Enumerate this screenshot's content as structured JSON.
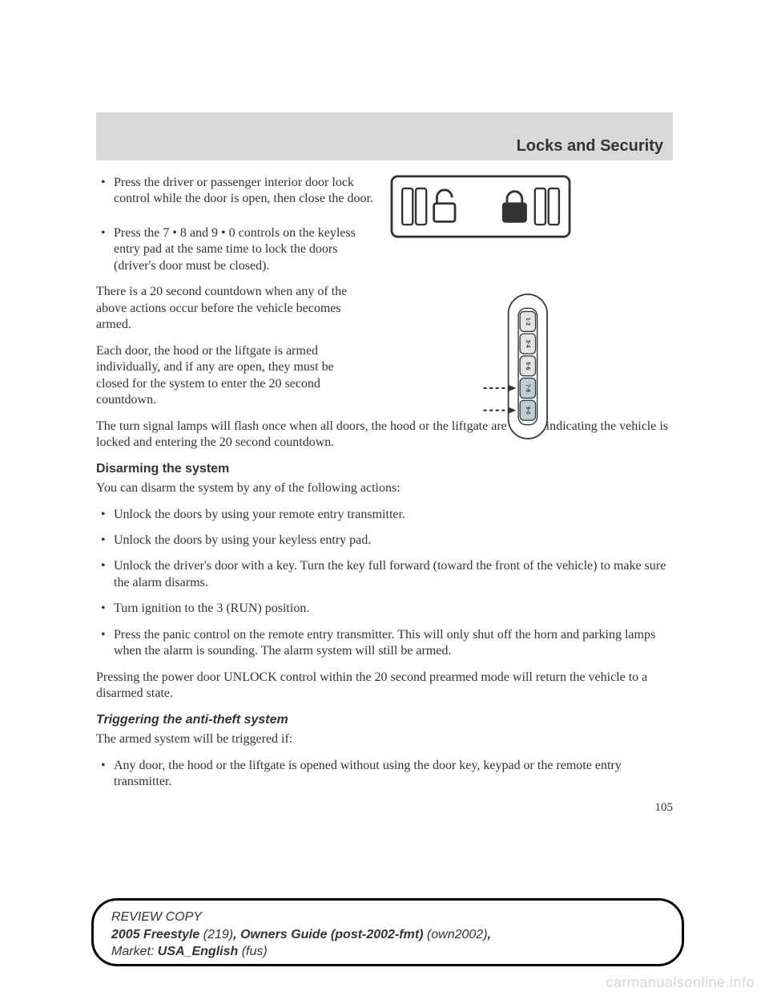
{
  "header": {
    "title": "Locks and Security"
  },
  "bullets_top": [
    "Press the driver or passenger interior door lock control while the door is open, then close the door.",
    "Press the 7 • 8 and 9 • 0 controls on the keyless entry pad at the same time to lock the doors (driver's door must be closed)."
  ],
  "paras_top": [
    "There is a 20 second countdown when any of the above actions occur before the vehicle becomes armed.",
    "Each door, the hood or the liftgate is armed individually, and if any are open, they must be closed for the system to enter the 20 second countdown.",
    "The turn signal lamps will flash once when all doors, the hood or the liftgate are closed indicating the vehicle is locked and entering the 20 second countdown."
  ],
  "sections": {
    "disarm": {
      "heading": "Disarming the system",
      "intro": "You can disarm the system by any of the following actions:",
      "bullets": [
        "Unlock the doors by using your remote entry transmitter.",
        "Unlock the doors by using your keyless entry pad.",
        "Unlock the driver's door with a key. Turn the key full forward (toward the front of the vehicle) to make sure the alarm disarms.",
        "Turn ignition to the 3 (RUN) position.",
        "Press the panic control on the remote entry transmitter. This will only shut off the horn and parking lamps when the alarm is sounding. The alarm system will still be armed."
      ],
      "outro": "Pressing the power door UNLOCK control within the 20 second prearmed mode will return the vehicle to a disarmed state."
    },
    "trigger": {
      "heading": "Triggering the anti-theft system",
      "intro": "The armed system will be triggered if:",
      "bullets": [
        "Any door, the hood or the liftgate is opened without using the door key, keypad or the remote entry transmitter."
      ]
    }
  },
  "page_number": "105",
  "lock_panel": {
    "bg": "#ffffff",
    "stroke": "#333333",
    "stroke_width": 2.5
  },
  "keypad": {
    "body_fill": "#ffffff",
    "stroke": "#333333",
    "button_fill": "#e3e3e3",
    "highlight_fill": "#b9cfd6",
    "labels": [
      "1·2",
      "3·4",
      "5·6",
      "7·8",
      "9·0"
    ],
    "arrow_targets": [
      3,
      4
    ],
    "dash": "6,5"
  },
  "footer": {
    "line1": "REVIEW COPY",
    "model_bold": "2005 Freestyle ",
    "model_code": "(219)",
    "guide_bold": ", Owners Guide (post-2002-fmt) ",
    "guide_code": "(own2002)",
    "comma": ",",
    "market_label": "Market: ",
    "market_bold": "USA_English ",
    "market_code": "(fus)"
  },
  "watermark": "carmanualsonline.info"
}
